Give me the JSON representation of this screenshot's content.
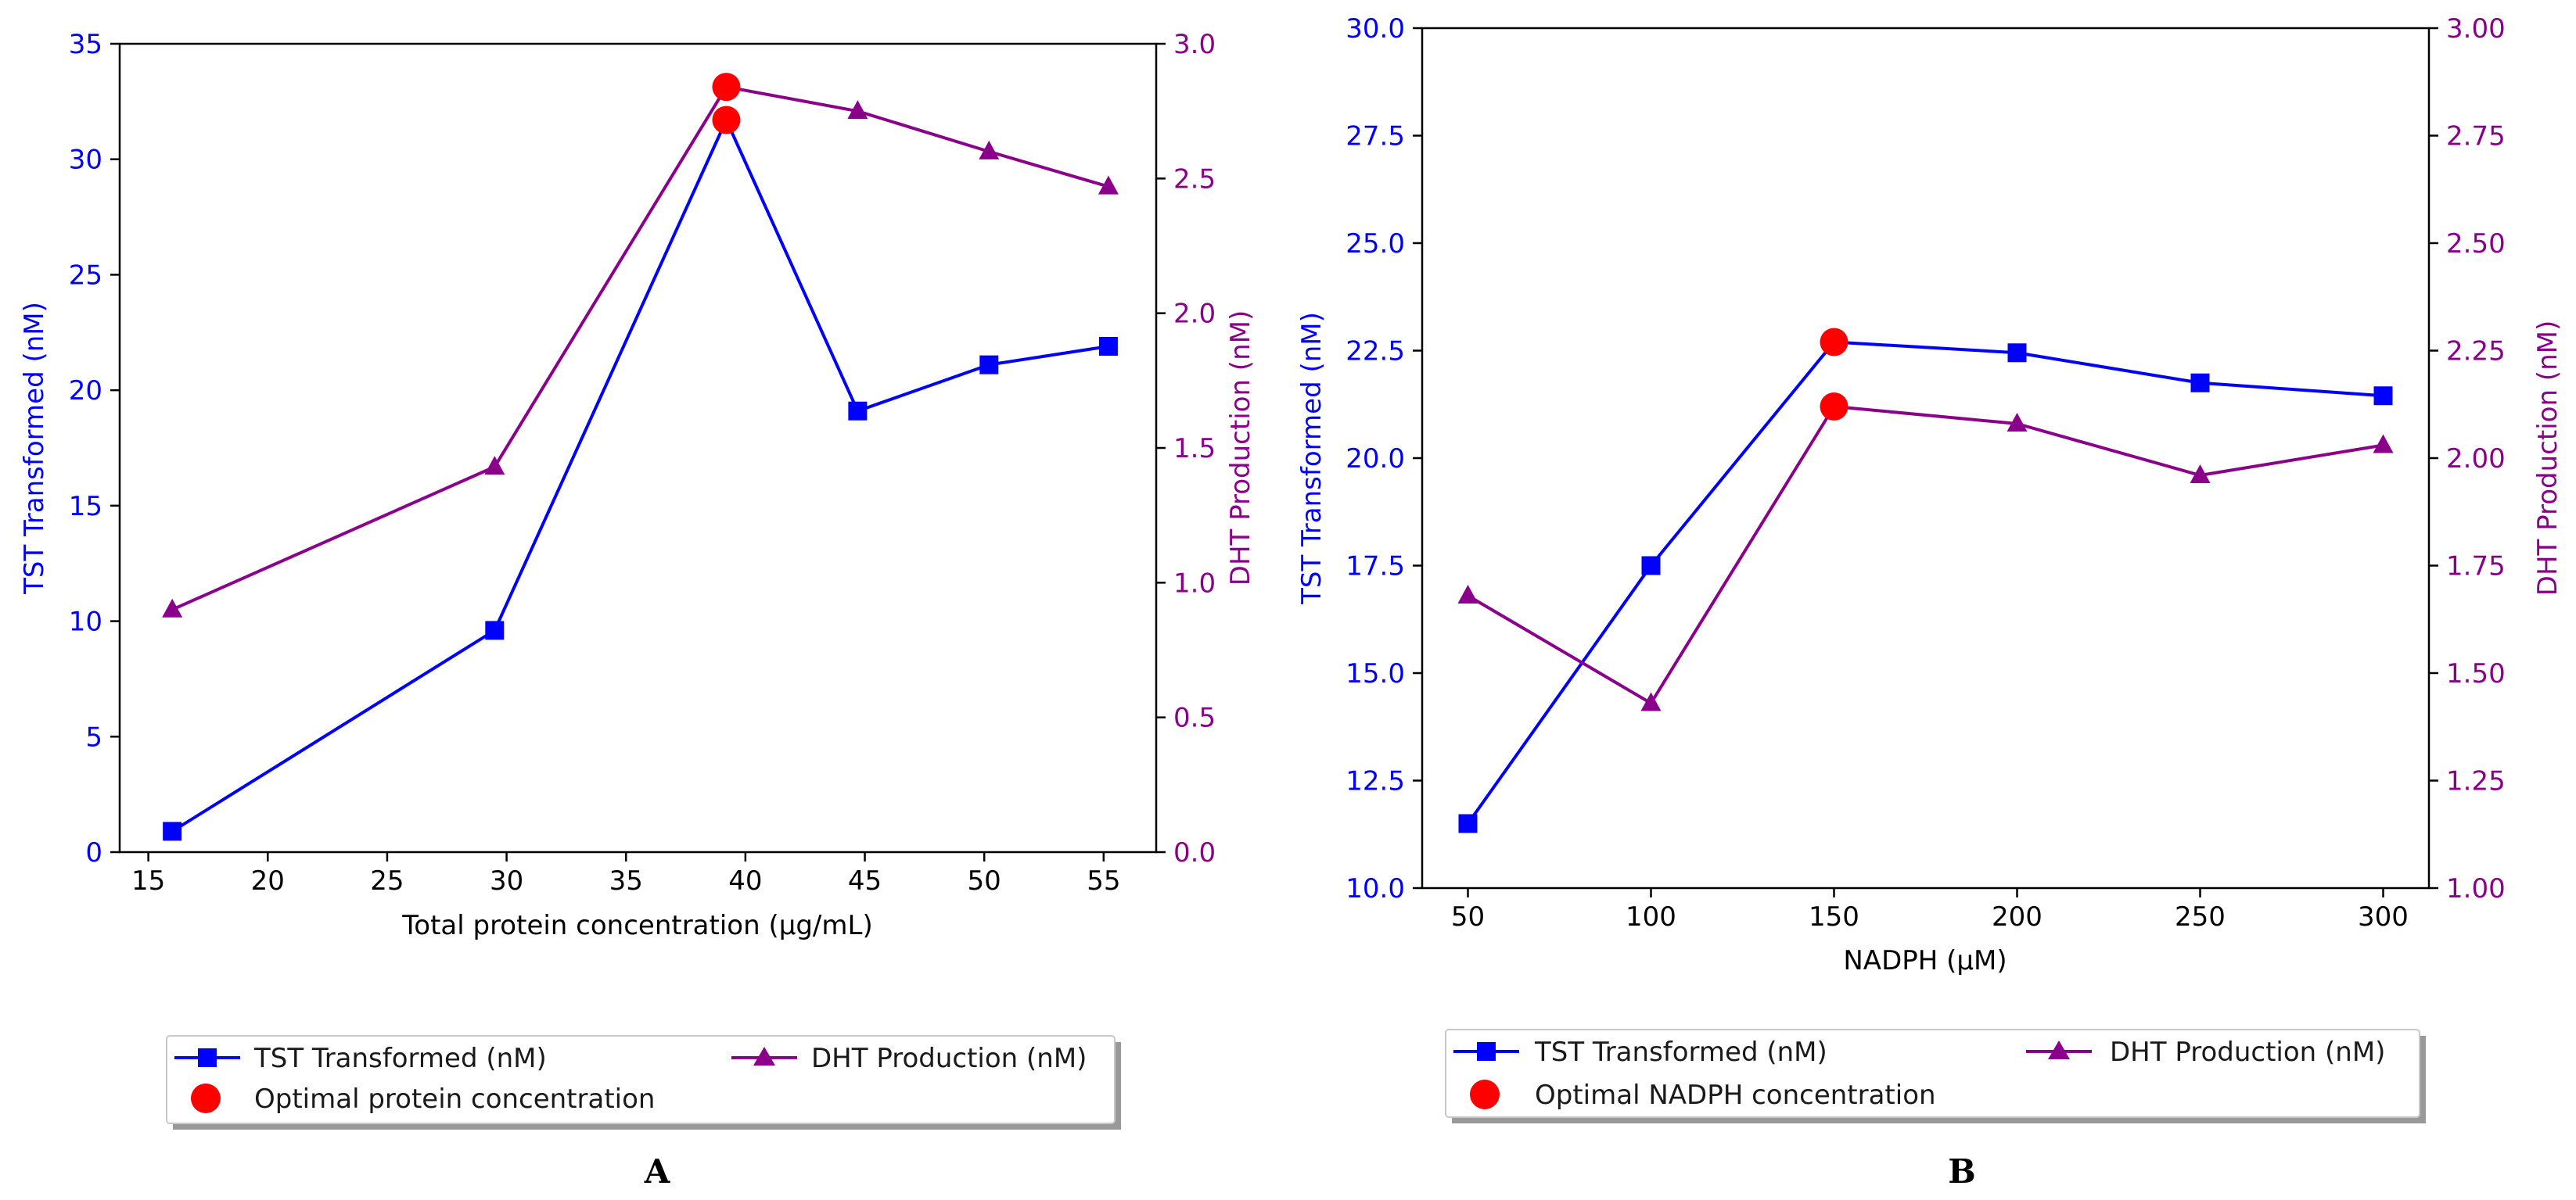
{
  "colors": {
    "tst": "#0000ff",
    "dht": "#8b008b",
    "optimal": "#ff0000",
    "axis": "#000000"
  },
  "chart_data": [
    {
      "panel": "A",
      "type": "line",
      "xlabel": "Total protein concentration (µg/mL)",
      "ylabel_left": "TST Transformed (nM)",
      "ylabel_right": "DHT Production (nM)",
      "xlim": [
        13.8,
        57.2
      ],
      "ylim_left": [
        0,
        35
      ],
      "ylim_right": [
        0,
        3.0
      ],
      "xticks": [
        15,
        20,
        25,
        30,
        35,
        40,
        45,
        50,
        55
      ],
      "xtick_labels": [
        "15",
        "20",
        "25",
        "30",
        "35",
        "40",
        "45",
        "50",
        "55"
      ],
      "yticks_left": [
        0,
        5,
        10,
        15,
        20,
        25,
        30,
        35
      ],
      "ytick_labels_left": [
        "0",
        "5",
        "10",
        "15",
        "20",
        "25",
        "30",
        "35"
      ],
      "yticks_right": [
        0,
        0.5,
        1.0,
        1.5,
        2.0,
        2.5,
        3.0
      ],
      "ytick_labels_right": [
        "0.0",
        "0.5",
        "1.0",
        "1.5",
        "2.0",
        "2.5",
        "3.0"
      ],
      "series": [
        {
          "name": "TST Transformed (nM)",
          "axis": "left",
          "marker": "square",
          "color": "#0000ff",
          "x": [
            16,
            29.5,
            39.2,
            44.7,
            50.2,
            55.2
          ],
          "values": [
            0.9,
            9.6,
            31.7,
            19.1,
            21.1,
            21.9
          ]
        },
        {
          "name": "DHT Production (nM)",
          "axis": "right",
          "marker": "triangle",
          "color": "#8b008b",
          "x": [
            16,
            29.5,
            39.2,
            44.7,
            50.2,
            55.2
          ],
          "values": [
            0.9,
            1.43,
            2.84,
            2.75,
            2.6,
            2.47
          ]
        }
      ],
      "optimal": {
        "name": "Optimal protein concentration",
        "x": 39.2,
        "left_value": 31.7,
        "right_value": 2.84
      },
      "legend": {
        "tst_label": "TST Transformed (nM)",
        "dht_label": "DHT Production (nM)",
        "optimal_label": "Optimal protein concentration"
      }
    },
    {
      "panel": "B",
      "type": "line",
      "xlabel": "NADPH (µM)",
      "ylabel_left": "TST Transformed (nM)",
      "ylabel_right": "DHT Production (nM)",
      "xlim": [
        37.5,
        312.5
      ],
      "ylim_left": [
        10,
        30
      ],
      "ylim_right": [
        1.0,
        3.0
      ],
      "xticks": [
        50,
        100,
        150,
        200,
        250,
        300
      ],
      "xtick_labels": [
        "50",
        "100",
        "150",
        "200",
        "250",
        "300"
      ],
      "yticks_left": [
        10,
        12.5,
        15,
        17.5,
        20,
        22.5,
        25,
        27.5,
        30
      ],
      "ytick_labels_left": [
        "10.0",
        "12.5",
        "15.0",
        "17.5",
        "20.0",
        "22.5",
        "25.0",
        "27.5",
        "30.0"
      ],
      "yticks_right": [
        1.0,
        1.25,
        1.5,
        1.75,
        2.0,
        2.25,
        2.5,
        2.75,
        3.0
      ],
      "ytick_labels_right": [
        "1.00",
        "1.25",
        "1.50",
        "1.75",
        "2.00",
        "2.25",
        "2.50",
        "2.75",
        "3.00"
      ],
      "series": [
        {
          "name": "TST Transformed (nM)",
          "axis": "left",
          "marker": "square",
          "color": "#0000ff",
          "x": [
            50,
            100,
            150,
            200,
            250,
            300
          ],
          "values": [
            11.5,
            17.5,
            22.7,
            22.45,
            21.75,
            21.45
          ]
        },
        {
          "name": "DHT Production (nM)",
          "axis": "right",
          "marker": "triangle",
          "color": "#8b008b",
          "x": [
            50,
            100,
            150,
            200,
            250,
            300
          ],
          "values": [
            1.68,
            1.43,
            2.12,
            2.08,
            1.96,
            2.03
          ]
        }
      ],
      "optimal": {
        "name": "Optimal NADPH concentration",
        "x": 150,
        "left_value": 22.7,
        "right_value": 2.12
      },
      "legend": {
        "tst_label": "TST Transformed (nM)",
        "dht_label": "DHT Production (nM)",
        "optimal_label": "Optimal NADPH concentration"
      }
    }
  ]
}
